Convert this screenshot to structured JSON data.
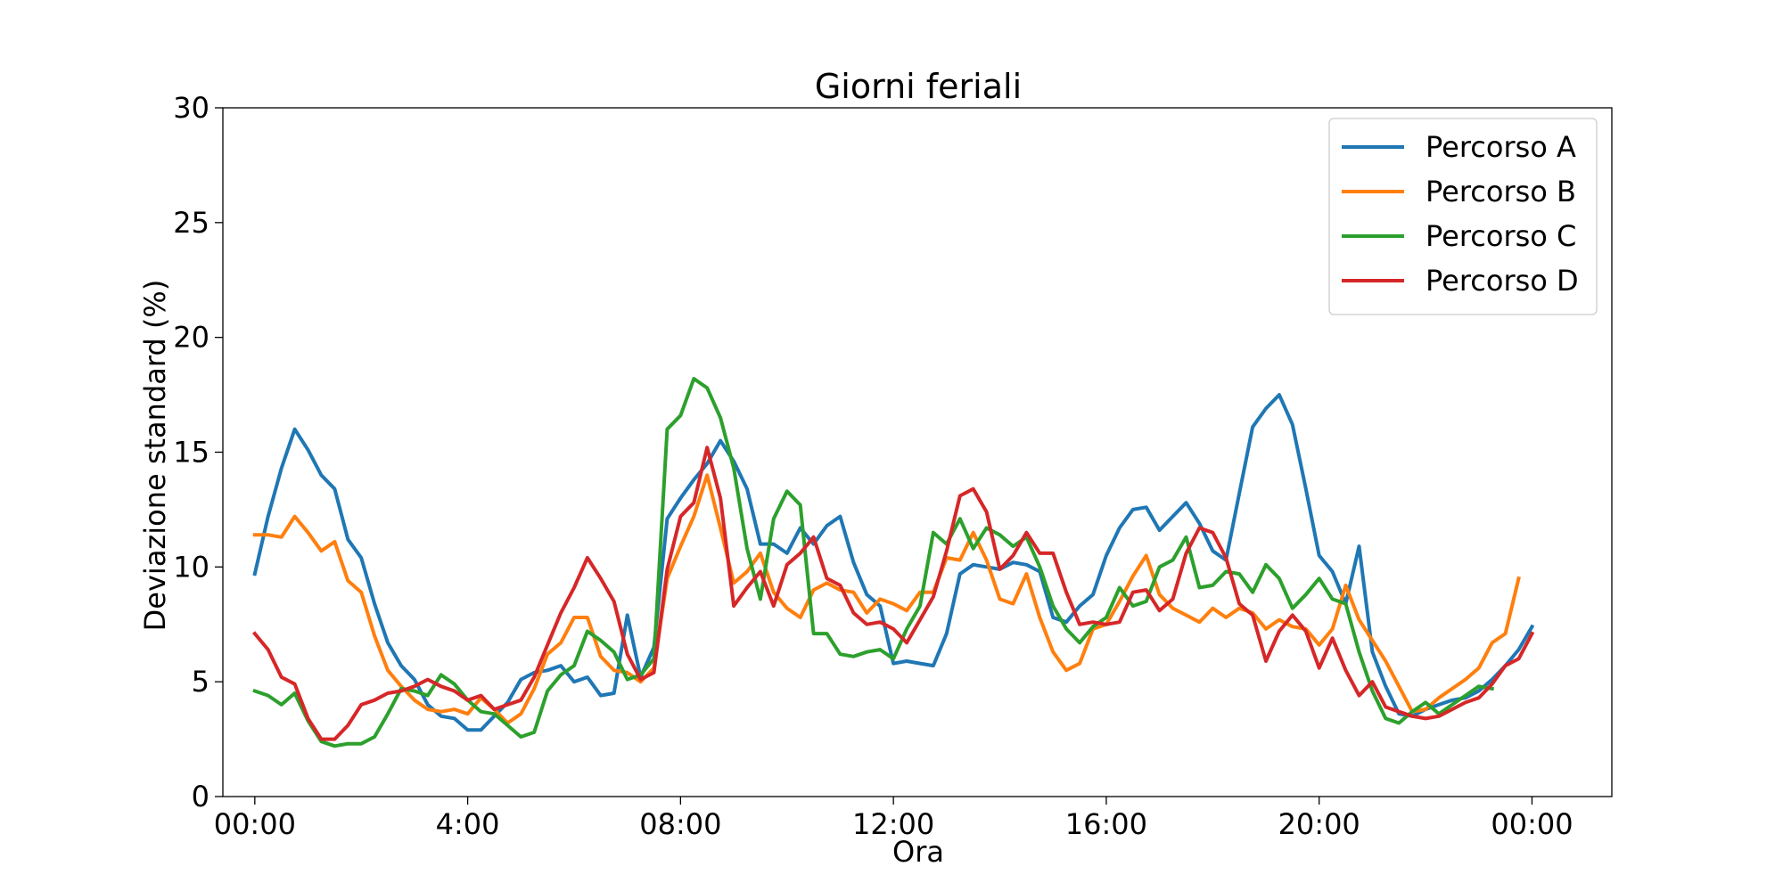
{
  "chart_data": {
    "type": "line",
    "title": "Giorni feriali",
    "xlabel": "Ora",
    "ylabel": "Deviazione standard (%)",
    "xlim": [
      -0.6,
      25.5
    ],
    "ylim": [
      0,
      30
    ],
    "x_ticks": [
      0,
      4,
      8,
      12,
      16,
      20,
      24
    ],
    "x_tick_labels": [
      "00:00",
      "4:00",
      "08:00",
      "12:00",
      "16:00",
      "20:00",
      "00:00"
    ],
    "y_ticks": [
      0,
      5,
      10,
      15,
      20,
      25,
      30
    ],
    "y_tick_labels": [
      "0",
      "5",
      "10",
      "15",
      "20",
      "25",
      "30"
    ],
    "grid": false,
    "legend_position": "top-right",
    "series": [
      {
        "name": "Percorso A",
        "color": "#1f77b4",
        "values": [
          9.7,
          12.2,
          14.3,
          16.0,
          15.1,
          14.0,
          13.4,
          11.2,
          10.4,
          8.4,
          6.7,
          5.7,
          5.1,
          4.0,
          3.5,
          3.4,
          2.9,
          2.9,
          3.5,
          4.1,
          5.1,
          5.4,
          5.5,
          5.7,
          5.0,
          5.2,
          4.4,
          4.5,
          7.9,
          5.2,
          6.5,
          12.1,
          13.0,
          13.8,
          14.5,
          15.5,
          14.6,
          13.4,
          11.0,
          11.0,
          10.6,
          11.7,
          11.0,
          11.8,
          12.2,
          10.2,
          8.8,
          8.3,
          5.8,
          5.9,
          5.8,
          5.7,
          7.1,
          9.7,
          10.1,
          10.0,
          9.9,
          10.2,
          10.1,
          9.8,
          7.8,
          7.6,
          8.3,
          8.8,
          10.5,
          11.7,
          12.5,
          12.6,
          11.6,
          12.2,
          12.8,
          11.9,
          10.7,
          10.3,
          13.2,
          16.1,
          16.9,
          17.5,
          16.2,
          13.4,
          10.5,
          9.8,
          8.4,
          10.9,
          6.3,
          4.8,
          3.6,
          3.5,
          3.8,
          4.0,
          4.2,
          4.3,
          4.6,
          5.1,
          5.7,
          6.4,
          7.4
        ]
      },
      {
        "name": "Percorso B",
        "color": "#ff7f0e",
        "values": [
          11.4,
          11.4,
          11.3,
          12.2,
          11.5,
          10.7,
          11.1,
          9.4,
          8.9,
          7.0,
          5.5,
          4.8,
          4.2,
          3.8,
          3.7,
          3.8,
          3.6,
          4.3,
          3.8,
          3.2,
          3.6,
          4.7,
          6.2,
          6.7,
          7.8,
          7.8,
          6.1,
          5.5,
          5.4,
          5.0,
          5.6,
          9.5,
          10.9,
          12.2,
          14.0,
          11.7,
          9.3,
          9.8,
          10.6,
          8.9,
          8.2,
          7.8,
          9.0,
          9.3,
          9.0,
          8.9,
          8.0,
          8.6,
          8.4,
          8.1,
          8.9,
          8.9,
          10.4,
          10.3,
          11.5,
          10.3,
          8.6,
          8.4,
          9.7,
          7.8,
          6.3,
          5.5,
          5.8,
          7.3,
          7.5,
          8.5,
          9.6,
          10.5,
          8.8,
          8.2,
          7.9,
          7.6,
          8.2,
          7.8,
          8.2,
          8.0,
          7.3,
          7.7,
          7.4,
          7.3,
          6.6,
          7.3,
          9.2,
          7.7,
          6.8,
          5.9,
          4.8,
          3.7,
          3.8,
          4.3,
          4.7,
          5.1,
          5.6,
          6.7,
          7.1,
          9.5
        ]
      },
      {
        "name": "Percorso C",
        "color": "#2ca02c",
        "values": [
          4.6,
          4.4,
          4.0,
          4.5,
          3.3,
          2.4,
          2.2,
          2.3,
          2.3,
          2.6,
          3.6,
          4.7,
          4.6,
          4.4,
          5.3,
          4.9,
          4.2,
          3.7,
          3.6,
          3.1,
          2.6,
          2.8,
          4.6,
          5.3,
          5.7,
          7.2,
          6.8,
          6.3,
          5.1,
          5.3,
          6.0,
          16.0,
          16.6,
          18.2,
          17.8,
          16.5,
          14.3,
          10.8,
          8.6,
          12.1,
          13.3,
          12.7,
          7.1,
          7.1,
          6.2,
          6.1,
          6.3,
          6.4,
          6.0,
          7.3,
          8.3,
          11.5,
          11.0,
          12.1,
          10.8,
          11.7,
          11.4,
          10.9,
          11.3,
          10.0,
          8.3,
          7.3,
          6.7,
          7.4,
          7.8,
          9.1,
          8.3,
          8.5,
          10.0,
          10.3,
          11.3,
          9.1,
          9.2,
          9.8,
          9.7,
          8.9,
          10.1,
          9.5,
          8.2,
          8.8,
          9.5,
          8.6,
          8.4,
          6.3,
          4.6,
          3.4,
          3.2,
          3.7,
          4.1,
          3.6,
          4.0,
          4.4,
          4.8,
          4.7
        ]
      },
      {
        "name": "Percorso D",
        "color": "#d62728",
        "values": [
          7.1,
          6.4,
          5.2,
          4.9,
          3.4,
          2.5,
          2.5,
          3.1,
          4.0,
          4.2,
          4.5,
          4.6,
          4.8,
          5.1,
          4.8,
          4.6,
          4.2,
          4.4,
          3.8,
          4.0,
          4.2,
          5.2,
          6.6,
          8.0,
          9.1,
          10.4,
          9.5,
          8.5,
          6.2,
          5.1,
          5.4,
          9.9,
          12.2,
          12.8,
          15.2,
          13.0,
          8.3,
          9.1,
          9.8,
          8.3,
          10.1,
          10.6,
          11.3,
          9.5,
          9.2,
          8.0,
          7.5,
          7.6,
          7.3,
          6.7,
          7.7,
          8.7,
          10.7,
          13.1,
          13.4,
          12.4,
          9.9,
          10.5,
          11.5,
          10.6,
          10.6,
          8.9,
          7.5,
          7.6,
          7.5,
          7.6,
          8.9,
          9.0,
          8.1,
          8.6,
          10.6,
          11.7,
          11.5,
          10.4,
          8.4,
          7.9,
          5.9,
          7.2,
          7.9,
          7.2,
          5.6,
          6.9,
          5.5,
          4.4,
          5.0,
          3.9,
          3.7,
          3.5,
          3.4,
          3.5,
          3.8,
          4.1,
          4.3,
          4.9,
          5.7,
          6.0,
          7.1
        ]
      }
    ]
  }
}
